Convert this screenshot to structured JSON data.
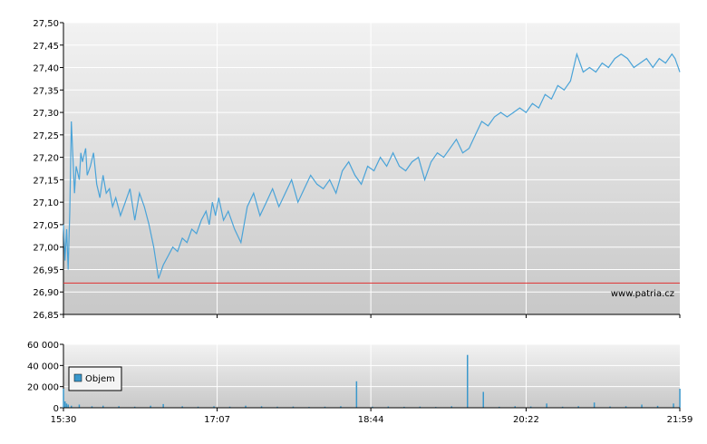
{
  "watermark": "www.patria.cz",
  "colors": {
    "price_line": "#4aa3d8",
    "reference_line": "#e03030",
    "volume_bar": "#3a98cc",
    "grid": "#ffffff",
    "panel_top": "#f2f2f2",
    "panel_bottom": "#c8c8c8",
    "legend_swatch": "#3a98cc"
  },
  "chart_data": [
    {
      "type": "line",
      "title": "",
      "xlabel": "",
      "ylabel": "",
      "ylim": [
        26.85,
        27.5
      ],
      "yticks": [
        "27,50",
        "27,45",
        "27,40",
        "27,35",
        "27,30",
        "27,25",
        "27,20",
        "27,15",
        "27,10",
        "27,05",
        "27,00",
        "26,95",
        "26,90",
        "26,85"
      ],
      "xticks": [
        "15:30",
        "17:07",
        "18:44",
        "20:22",
        "21:59"
      ],
      "xlim_minutes": [
        930,
        1319
      ],
      "grid": true,
      "reference_line": 26.92,
      "series": [
        {
          "x": [
            "15:30",
            "15:31",
            "15:32",
            "15:33",
            "15:34",
            "15:35",
            "15:37",
            "15:38",
            "15:40",
            "15:41",
            "15:42",
            "15:44",
            "15:45",
            "15:47",
            "15:49",
            "15:51",
            "15:53",
            "15:55",
            "15:57",
            "15:59",
            "16:01",
            "16:03",
            "16:06",
            "16:09",
            "16:12",
            "16:15",
            "16:18",
            "16:21",
            "16:24",
            "16:27",
            "16:30",
            "16:33",
            "16:36",
            "16:39",
            "16:42",
            "16:45",
            "16:48",
            "16:51",
            "16:54",
            "16:57",
            "17:00",
            "17:02",
            "17:04",
            "17:06",
            "17:08",
            "17:11",
            "17:14",
            "17:18",
            "17:22",
            "17:26",
            "17:30",
            "17:34",
            "17:38",
            "17:42",
            "17:46",
            "17:50",
            "17:54",
            "17:58",
            "18:02",
            "18:06",
            "18:10",
            "18:14",
            "18:18",
            "18:22",
            "18:26",
            "18:30",
            "18:34",
            "18:38",
            "18:42",
            "18:46",
            "18:50",
            "18:54",
            "18:58",
            "19:02",
            "19:06",
            "19:10",
            "19:14",
            "19:18",
            "19:22",
            "19:26",
            "19:30",
            "19:34",
            "19:38",
            "19:42",
            "19:46",
            "19:50",
            "19:54",
            "19:58",
            "20:02",
            "20:06",
            "20:10",
            "20:14",
            "20:18",
            "20:22",
            "20:26",
            "20:30",
            "20:34",
            "20:38",
            "20:42",
            "20:46",
            "20:50",
            "20:54",
            "20:58",
            "21:02",
            "21:06",
            "21:10",
            "21:14",
            "21:18",
            "21:22",
            "21:26",
            "21:30",
            "21:34",
            "21:38",
            "21:42",
            "21:46",
            "21:50",
            "21:54",
            "21:56",
            "21:57",
            "21:58",
            "21:59"
          ],
          "values": [
            27.05,
            26.97,
            27.04,
            26.95,
            27.08,
            27.28,
            27.12,
            27.18,
            27.15,
            27.21,
            27.19,
            27.22,
            27.16,
            27.18,
            27.21,
            27.14,
            27.11,
            27.16,
            27.12,
            27.13,
            27.09,
            27.11,
            27.07,
            27.1,
            27.13,
            27.06,
            27.12,
            27.09,
            27.05,
            27.0,
            26.93,
            26.96,
            26.98,
            27.0,
            26.99,
            27.02,
            27.01,
            27.04,
            27.03,
            27.06,
            27.08,
            27.05,
            27.1,
            27.07,
            27.11,
            27.06,
            27.08,
            27.04,
            27.01,
            27.09,
            27.12,
            27.07,
            27.1,
            27.13,
            27.09,
            27.12,
            27.15,
            27.1,
            27.13,
            27.16,
            27.14,
            27.13,
            27.15,
            27.12,
            27.17,
            27.19,
            27.16,
            27.14,
            27.18,
            27.17,
            27.2,
            27.18,
            27.21,
            27.18,
            27.17,
            27.19,
            27.2,
            27.15,
            27.19,
            27.21,
            27.2,
            27.22,
            27.24,
            27.21,
            27.22,
            27.25,
            27.28,
            27.27,
            27.29,
            27.3,
            27.29,
            27.3,
            27.31,
            27.3,
            27.32,
            27.31,
            27.34,
            27.33,
            27.36,
            27.35,
            27.37,
            27.43,
            27.39,
            27.4,
            27.39,
            27.41,
            27.4,
            27.42,
            27.43,
            27.42,
            27.4,
            27.41,
            27.42,
            27.4,
            27.42,
            27.41,
            27.43,
            27.42,
            27.41,
            27.4,
            27.39
          ]
        }
      ]
    },
    {
      "type": "bar",
      "title": "",
      "xlabel": "",
      "ylabel": "",
      "ylim": [
        0,
        60000
      ],
      "yticks": [
        "60 000",
        "40 000",
        "20 000",
        "0"
      ],
      "xticks": [
        "15:30",
        "17:07",
        "18:44",
        "20:22",
        "21:59"
      ],
      "xlim_minutes": [
        930,
        1319
      ],
      "grid": true,
      "legend": {
        "label": "Objem",
        "position": "left"
      },
      "series": [
        {
          "name": "Objem",
          "x": [
            "15:30",
            "15:31",
            "15:32",
            "15:33",
            "15:35",
            "15:40",
            "15:48",
            "15:55",
            "16:05",
            "16:15",
            "16:25",
            "16:33",
            "16:45",
            "16:55",
            "17:05",
            "17:15",
            "17:25",
            "17:35",
            "17:45",
            "17:55",
            "18:05",
            "18:15",
            "18:25",
            "18:35",
            "18:45",
            "18:55",
            "19:05",
            "19:15",
            "19:25",
            "19:35",
            "19:45",
            "19:55",
            "20:05",
            "20:15",
            "20:25",
            "20:35",
            "20:45",
            "20:55",
            "21:05",
            "21:15",
            "21:25",
            "21:35",
            "21:45",
            "21:55",
            "21:59"
          ],
          "values": [
            18000,
            6000,
            4000,
            3000,
            2000,
            3000,
            1500,
            2000,
            1500,
            1000,
            2000,
            3500,
            1500,
            1000,
            1500,
            1000,
            2000,
            1500,
            1000,
            1200,
            800,
            1000,
            1500,
            25000,
            1000,
            1200,
            900,
            1100,
            800,
            1500,
            50000,
            15000,
            900,
            1500,
            1200,
            4000,
            1000,
            1500,
            5000,
            1200,
            1500,
            3000,
            1800,
            4000,
            18000
          ]
        }
      ]
    }
  ]
}
